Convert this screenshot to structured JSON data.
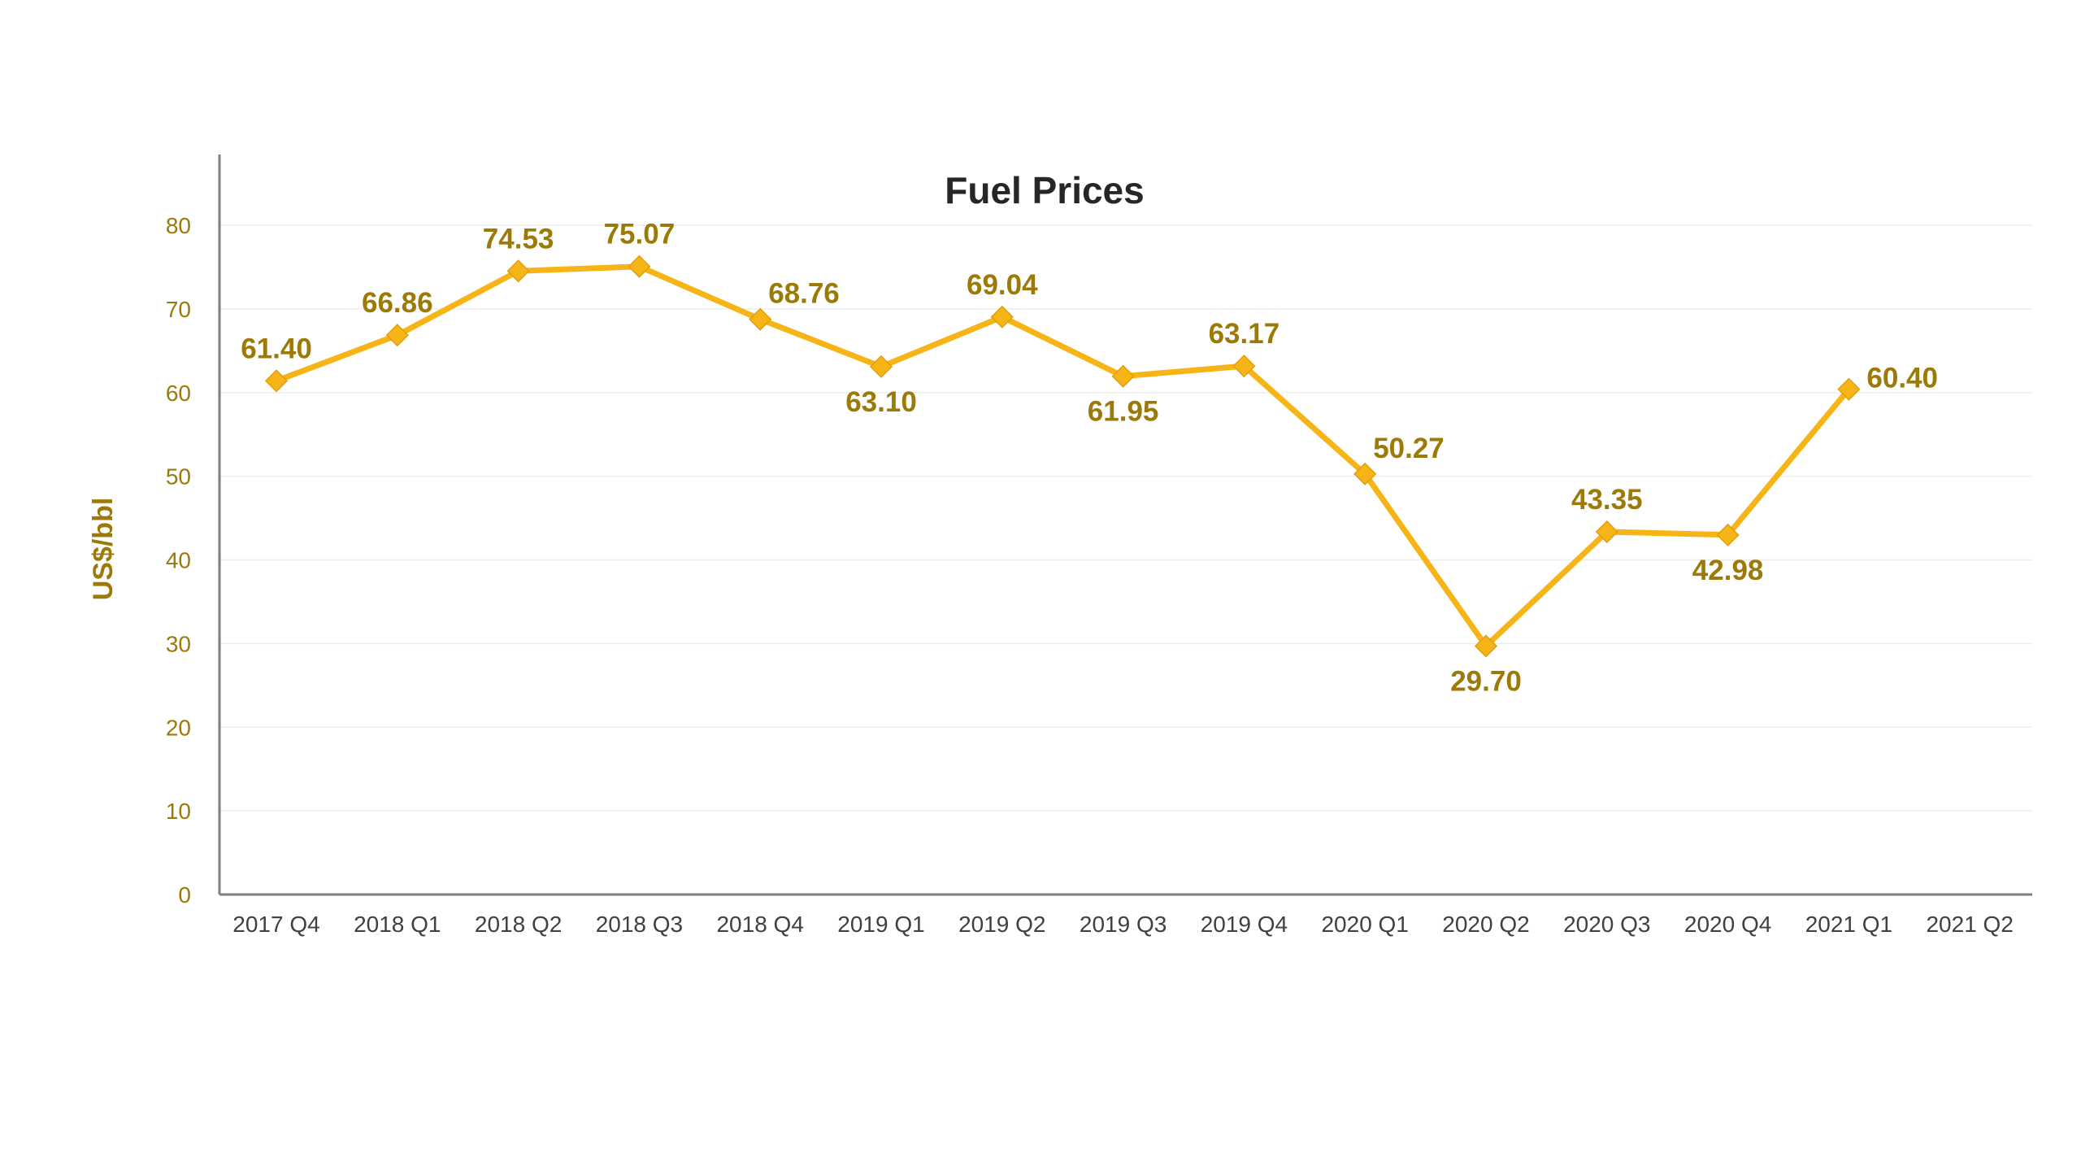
{
  "chart_data": {
    "type": "line",
    "title": "Fuel Prices",
    "xlabel": "",
    "ylabel": "US$/bbl",
    "ylim": [
      0,
      80
    ],
    "yticks": [
      0,
      10,
      20,
      30,
      40,
      50,
      60,
      70,
      80
    ],
    "grid": true,
    "legend": "none",
    "categories": [
      "2017 Q4",
      "2018 Q1",
      "2018 Q2",
      "2018 Q3",
      "2018 Q4",
      "2019 Q1",
      "2019 Q2",
      "2019 Q3",
      "2019 Q4",
      "2020 Q1",
      "2020 Q2",
      "2020 Q3",
      "2020 Q4",
      "2021 Q1",
      "2021 Q2"
    ],
    "series": [
      {
        "values": [
          61.4,
          66.86,
          74.53,
          75.07,
          68.76,
          63.1,
          69.04,
          61.95,
          63.17,
          50.27,
          29.7,
          43.35,
          42.98,
          60.4,
          null
        ],
        "data_labels": [
          "61.40",
          "66.86",
          "74.53",
          "75.07",
          "68.76",
          "63.10",
          "69.04",
          "61.95",
          "63.17",
          "50.27",
          "29.70",
          "43.35",
          "42.98",
          "60.40",
          ""
        ],
        "label_position": [
          "above",
          "above",
          "above",
          "above",
          "above-right",
          "below",
          "above",
          "below",
          "above",
          "above-right",
          "below",
          "above",
          "below",
          "right",
          ""
        ]
      }
    ],
    "colors": {
      "line": "#F6B416",
      "marker": "#F6B416",
      "labels": "#9C7A08",
      "yticks": "#9C7A08",
      "ylabel": "#9C7A08",
      "xticks": "#404040",
      "axis": "#7F7F7F",
      "grid": "#EDEDED",
      "title": "#262626"
    }
  }
}
